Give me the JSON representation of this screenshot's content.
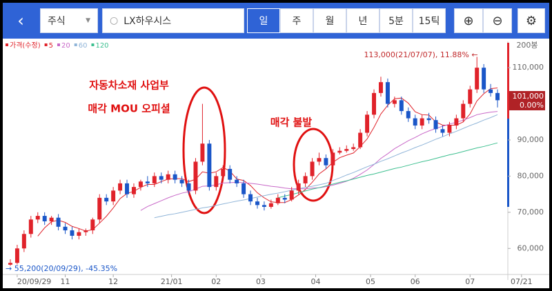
{
  "toolbar": {
    "market": "주식",
    "search": "LX하우시스",
    "periods": [
      "일",
      "주",
      "월",
      "년",
      "5분",
      "15틱"
    ],
    "selected": "일"
  },
  "chart_data": {
    "type": "candlestick",
    "legend": [
      "가격(수정)",
      "5",
      "20",
      "60",
      "120"
    ],
    "bar_count": "200봉",
    "annotations": [
      "자동차소재 사업부",
      "매각 MOU 오피셜",
      "매각 불발"
    ],
    "max_label": "113,000(21/07/07), 11.88% ←",
    "min_label": "→ 55,200(20/09/29), -45.35%",
    "current_price": "101,000",
    "current_change": "0.00%",
    "up_color": "#e0222a",
    "down_color": "#1a56c8",
    "xlim": [
      -0.5,
      71.5
    ],
    "xticks": [
      {
        "value": 1,
        "label": "20/09/29"
      },
      {
        "value": 8,
        "label": "11"
      },
      {
        "value": 15,
        "label": "12"
      },
      {
        "value": 23.5,
        "label": "21/01"
      },
      {
        "value": 30,
        "label": "02"
      },
      {
        "value": 36.5,
        "label": "03"
      },
      {
        "value": 44.5,
        "label": "04"
      },
      {
        "value": 52.5,
        "label": "05"
      },
      {
        "value": 59,
        "label": "06"
      },
      {
        "value": 67,
        "label": "07"
      },
      {
        "value": 74.5,
        "label": "07/21"
      }
    ],
    "ylim": [
      52800,
      116900
    ],
    "yticks": [
      {
        "value": 60000,
        "label": "60,000"
      },
      {
        "value": 70000,
        "label": "70,000"
      },
      {
        "value": 80000,
        "label": "80,000"
      },
      {
        "value": 90000,
        "label": "90,000"
      },
      {
        "value": 110000,
        "label": "110,000"
      }
    ],
    "open": [
      55500,
      56000,
      60000,
      64000,
      68000,
      69000,
      67500,
      68500,
      66000,
      65000,
      63500,
      64500,
      65000,
      68000,
      74000,
      73000,
      76000,
      78000,
      75000,
      77000,
      78500,
      78000,
      80000,
      79000,
      80500,
      79000,
      78000,
      76000,
      84000,
      89000,
      77000,
      80000,
      82000,
      79000,
      78000,
      75000,
      73000,
      72000,
      71500,
      72500,
      74000,
      73500,
      76000,
      78000,
      80000,
      84000,
      85000,
      83000,
      86500,
      87000,
      87500,
      88000,
      92000,
      97000,
      103000,
      106000,
      100000,
      101000,
      98000,
      96000,
      94000,
      96000,
      95500,
      93000,
      92000,
      94000,
      96000,
      100000,
      104000,
      110000,
      104000,
      103000
    ],
    "high": [
      57000,
      61000,
      65000,
      69000,
      70000,
      70000,
      69000,
      69500,
      67000,
      66000,
      65500,
      65500,
      68500,
      75000,
      75000,
      77000,
      79000,
      79000,
      78000,
      79000,
      80000,
      81000,
      81000,
      81500,
      81500,
      80000,
      79000,
      85000,
      100000,
      90000,
      81000,
      83000,
      83000,
      80000,
      79000,
      76000,
      74000,
      73000,
      73500,
      75000,
      75000,
      77000,
      79000,
      81000,
      85000,
      86500,
      86000,
      87500,
      88000,
      88500,
      89000,
      93000,
      98000,
      104000,
      107500,
      107000,
      102000,
      102000,
      99000,
      97000,
      97000,
      97500,
      96500,
      94000,
      95000,
      97000,
      101000,
      105000,
      113000,
      111000,
      105500,
      104000
    ],
    "low": [
      55200,
      55500,
      59000,
      63000,
      67000,
      66500,
      66500,
      65000,
      64000,
      62500,
      62500,
      63500,
      64000,
      67000,
      72000,
      72000,
      75000,
      74000,
      74000,
      76000,
      77000,
      77000,
      78000,
      78000,
      78000,
      77000,
      75000,
      75000,
      83000,
      76000,
      76000,
      79000,
      78000,
      77000,
      74000,
      72000,
      71000,
      70500,
      71000,
      72000,
      72500,
      73000,
      75000,
      77000,
      79000,
      83000,
      82000,
      82500,
      86000,
      86500,
      87000,
      87500,
      91000,
      96000,
      102000,
      99000,
      99000,
      97000,
      95000,
      93000,
      93000,
      94500,
      92000,
      91000,
      91000,
      93000,
      95000,
      99000,
      103000,
      103000,
      102000,
      99000
    ],
    "close": [
      56000,
      60000,
      64000,
      68000,
      69000,
      67500,
      68500,
      66000,
      65000,
      63500,
      64500,
      65000,
      68000,
      74000,
      73000,
      76000,
      78000,
      75000,
      77000,
      78500,
      78000,
      80000,
      79000,
      80500,
      79000,
      78000,
      76000,
      84000,
      89000,
      77000,
      80000,
      82000,
      79000,
      78000,
      75000,
      73000,
      72000,
      71500,
      72500,
      74000,
      73500,
      76000,
      78000,
      80000,
      84000,
      85000,
      83000,
      86500,
      87000,
      87500,
      88000,
      92000,
      97000,
      103000,
      106000,
      100000,
      101000,
      98000,
      96000,
      94000,
      96000,
      95500,
      93000,
      92000,
      94000,
      96000,
      100000,
      104000,
      110000,
      104000,
      103000,
      101000
    ],
    "series": [
      {
        "name": "5",
        "color": "#e0222a",
        "values": [
          null,
          null,
          null,
          null,
          63400,
          65700,
          67400,
          67800,
          67200,
          66100,
          65500,
          64800,
          65200,
          67000,
          68900,
          71200,
          73800,
          75200,
          75800,
          76900,
          77700,
          77700,
          78500,
          79200,
          79300,
          79300,
          78500,
          79100,
          81200,
          80800,
          81200,
          82400,
          81400,
          79200,
          78800,
          77400,
          75400,
          74000,
          72900,
          72700,
          72700,
          73500,
          74800,
          76300,
          78300,
          80600,
          82000,
          83800,
          85100,
          85800,
          86400,
          88200,
          90300,
          93500,
          97200,
          99600,
          101400,
          101600,
          100200,
          97800,
          97000,
          96900,
          95000,
          94100,
          94100,
          94100,
          95000,
          97200,
          100800,
          102800,
          104200,
          104400
        ]
      },
      {
        "name": "20",
        "color": "#c868c8",
        "values": [
          null,
          null,
          null,
          null,
          null,
          null,
          null,
          null,
          null,
          null,
          null,
          null,
          null,
          null,
          null,
          null,
          null,
          null,
          null,
          70500,
          71600,
          72400,
          73200,
          74000,
          74700,
          75300,
          75700,
          76400,
          77200,
          77300,
          77600,
          78100,
          78200,
          78300,
          78200,
          78000,
          77800,
          77500,
          77200,
          77000,
          76700,
          76500,
          76500,
          76500,
          76700,
          76800,
          77100,
          77500,
          78000,
          78600,
          79400,
          80500,
          81700,
          83200,
          84900,
          86200,
          87600,
          88700,
          89800,
          90700,
          91700,
          92500,
          93200,
          93800,
          94400,
          94900,
          95500,
          96200,
          97000,
          97400,
          97700,
          97900
        ]
      },
      {
        "name": "60",
        "color": "#8fb4d8",
        "values": [
          null,
          null,
          null,
          null,
          null,
          null,
          null,
          null,
          null,
          null,
          null,
          null,
          null,
          null,
          null,
          null,
          null,
          null,
          null,
          null,
          null,
          68500,
          68900,
          69300,
          69600,
          70000,
          70400,
          70800,
          71200,
          71500,
          71900,
          72300,
          72700,
          73100,
          73400,
          73800,
          74200,
          74600,
          75000,
          75300,
          75700,
          76100,
          76500,
          76900,
          77200,
          77600,
          78000,
          78800,
          79500,
          80300,
          81000,
          81800,
          82600,
          83300,
          84100,
          84800,
          85600,
          86400,
          87100,
          87900,
          88600,
          89400,
          90200,
          90900,
          91700,
          92400,
          93200,
          94000,
          94700,
          95500,
          96200,
          97000
        ]
      },
      {
        "name": "120",
        "color": "#3cbf8f",
        "values": [
          null,
          null,
          null,
          null,
          null,
          null,
          null,
          null,
          null,
          null,
          null,
          null,
          null,
          null,
          null,
          null,
          null,
          null,
          null,
          null,
          null,
          null,
          null,
          null,
          null,
          null,
          null,
          null,
          null,
          null,
          null,
          null,
          null,
          null,
          null,
          null,
          null,
          null,
          null,
          74000,
          74500,
          74900,
          75400,
          75900,
          76400,
          76800,
          77300,
          77800,
          78300,
          78700,
          79200,
          79700,
          80200,
          80600,
          81100,
          81600,
          82100,
          82500,
          83000,
          83500,
          84000,
          84400,
          84900,
          85400,
          85900,
          86300,
          86800,
          87300,
          87800,
          88200,
          88700,
          89200
        ]
      }
    ]
  }
}
